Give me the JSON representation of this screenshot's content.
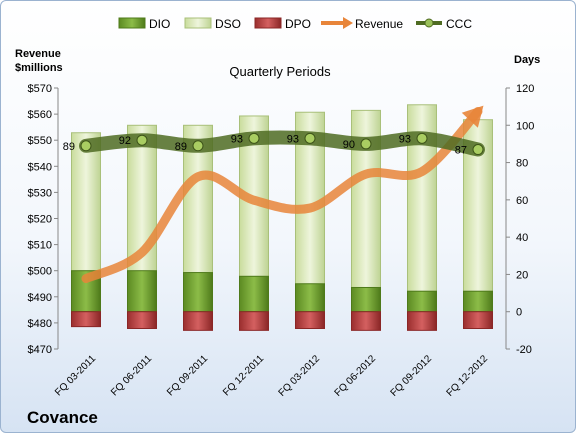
{
  "chart_data": {
    "type": "bar",
    "title": "Quarterly Periods",
    "company": "Covance",
    "y_left_label": [
      "Revenue",
      "$millions"
    ],
    "y_right_label": "Days",
    "y_left_range": [
      470,
      570
    ],
    "y_right_range": [
      -20,
      120
    ],
    "y_left_ticks": [
      "$470",
      "$480",
      "$490",
      "$500",
      "$510",
      "$520",
      "$530",
      "$540",
      "$550",
      "$560",
      "$570"
    ],
    "y_right_ticks": [
      "-20",
      "0",
      "20",
      "40",
      "60",
      "80",
      "100",
      "120"
    ],
    "categories": [
      "FQ 03-2011",
      "FQ 06-2011",
      "FQ 09-2011",
      "FQ 12-2011",
      "FQ 03-2012",
      "FQ 06-2012",
      "FQ 09-2012",
      "FQ 12-2012"
    ],
    "legend": [
      "DIO",
      "DSO",
      "DPO",
      "Revenue",
      "CCC"
    ],
    "series": [
      {
        "name": "DIO",
        "axis": "right",
        "values": [
          22,
          22,
          21,
          19,
          15,
          13,
          11,
          11
        ],
        "color": "#6a9a2a"
      },
      {
        "name": "DSO",
        "axis": "right",
        "values": [
          96,
          100,
          100,
          105,
          107,
          108,
          111,
          103
        ],
        "color": "#dbe8bd"
      },
      {
        "name": "DPO",
        "axis": "right",
        "values": [
          -8,
          -9,
          -10,
          -10,
          -9,
          -10,
          -10,
          -9
        ],
        "color": "#b83c3c"
      },
      {
        "name": "Revenue",
        "axis": "left",
        "values": [
          497,
          507,
          536,
          527,
          524,
          537,
          538,
          561
        ],
        "color": "#e8853a"
      },
      {
        "name": "CCC",
        "axis": "right",
        "values": [
          89,
          92,
          89,
          93,
          93,
          90,
          93,
          87
        ],
        "color": "#4f6b22"
      }
    ],
    "ccc_labels": [
      "89",
      "92",
      "89",
      "93",
      "93",
      "90",
      "93",
      "87"
    ]
  }
}
